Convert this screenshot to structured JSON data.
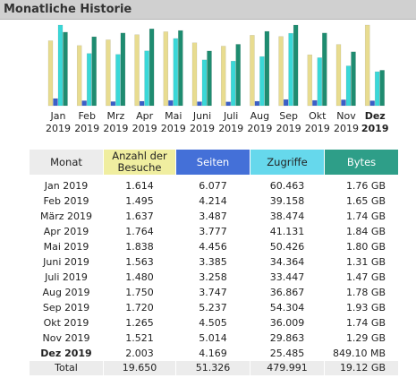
{
  "title": "Monatliche Historie",
  "colors": {
    "visits": "#e8dc90",
    "pages": "#3a5fc8",
    "hits": "#3ad8d8",
    "bytes": "#1e8c70"
  },
  "chart_data": {
    "type": "bar",
    "categories": [
      {
        "month": "Jan",
        "year": "2019",
        "current": false
      },
      {
        "month": "Feb",
        "year": "2019",
        "current": false
      },
      {
        "month": "Mrz",
        "year": "2019",
        "current": false
      },
      {
        "month": "Apr",
        "year": "2019",
        "current": false
      },
      {
        "month": "Mai",
        "year": "2019",
        "current": false
      },
      {
        "month": "Juni",
        "year": "2019",
        "current": false
      },
      {
        "month": "Juli",
        "year": "2019",
        "current": false
      },
      {
        "month": "Aug",
        "year": "2019",
        "current": false
      },
      {
        "month": "Sep",
        "year": "2019",
        "current": false
      },
      {
        "month": "Okt",
        "year": "2019",
        "current": false
      },
      {
        "month": "Nov",
        "year": "2019",
        "current": false
      },
      {
        "month": "Dez",
        "year": "2019",
        "current": true
      }
    ],
    "series": [
      {
        "key": "visits",
        "values": [
          1614,
          1495,
          1637,
          1764,
          1838,
          1563,
          1480,
          1750,
          1720,
          1265,
          1521,
          2003
        ]
      },
      {
        "key": "pages",
        "values": [
          6077,
          4214,
          3487,
          3777,
          4456,
          3385,
          3258,
          3747,
          5237,
          4505,
          5014,
          4169
        ]
      },
      {
        "key": "hits",
        "values": [
          60463,
          39158,
          38474,
          41131,
          50426,
          34364,
          33447,
          36867,
          54304,
          36009,
          29863,
          25485
        ]
      },
      {
        "key": "bytes",
        "values": [
          1.76,
          1.65,
          1.74,
          1.84,
          1.8,
          1.31,
          1.47,
          1.78,
          1.93,
          1.74,
          1.29,
          0.849
        ]
      }
    ]
  },
  "table": {
    "headers": {
      "month": "Monat",
      "visits": "Anzahl der Besuche",
      "pages": "Seiten",
      "hits": "Zugriffe",
      "bytes": "Bytes"
    },
    "rows": [
      {
        "month": "Jan 2019",
        "visits": "1.614",
        "pages": "6.077",
        "hits": "60.463",
        "bytes": "1.76 GB"
      },
      {
        "month": "Feb 2019",
        "visits": "1.495",
        "pages": "4.214",
        "hits": "39.158",
        "bytes": "1.65 GB"
      },
      {
        "month": "März 2019",
        "visits": "1.637",
        "pages": "3.487",
        "hits": "38.474",
        "bytes": "1.74 GB"
      },
      {
        "month": "Apr 2019",
        "visits": "1.764",
        "pages": "3.777",
        "hits": "41.131",
        "bytes": "1.84 GB"
      },
      {
        "month": "Mai 2019",
        "visits": "1.838",
        "pages": "4.456",
        "hits": "50.426",
        "bytes": "1.80 GB"
      },
      {
        "month": "Juni 2019",
        "visits": "1.563",
        "pages": "3.385",
        "hits": "34.364",
        "bytes": "1.31 GB"
      },
      {
        "month": "Juli 2019",
        "visits": "1.480",
        "pages": "3.258",
        "hits": "33.447",
        "bytes": "1.47 GB"
      },
      {
        "month": "Aug 2019",
        "visits": "1.750",
        "pages": "3.747",
        "hits": "36.867",
        "bytes": "1.78 GB"
      },
      {
        "month": "Sep 2019",
        "visits": "1.720",
        "pages": "5.237",
        "hits": "54.304",
        "bytes": "1.93 GB"
      },
      {
        "month": "Okt 2019",
        "visits": "1.265",
        "pages": "4.505",
        "hits": "36.009",
        "bytes": "1.74 GB"
      },
      {
        "month": "Nov 2019",
        "visits": "1.521",
        "pages": "5.014",
        "hits": "29.863",
        "bytes": "1.29 GB"
      },
      {
        "month": "Dez 2019",
        "visits": "2.003",
        "pages": "4.169",
        "hits": "25.485",
        "bytes": "849.10 MB"
      }
    ],
    "total": {
      "month": "Total",
      "visits": "19.650",
      "pages": "51.326",
      "hits": "479.991",
      "bytes": "19.12 GB"
    }
  }
}
